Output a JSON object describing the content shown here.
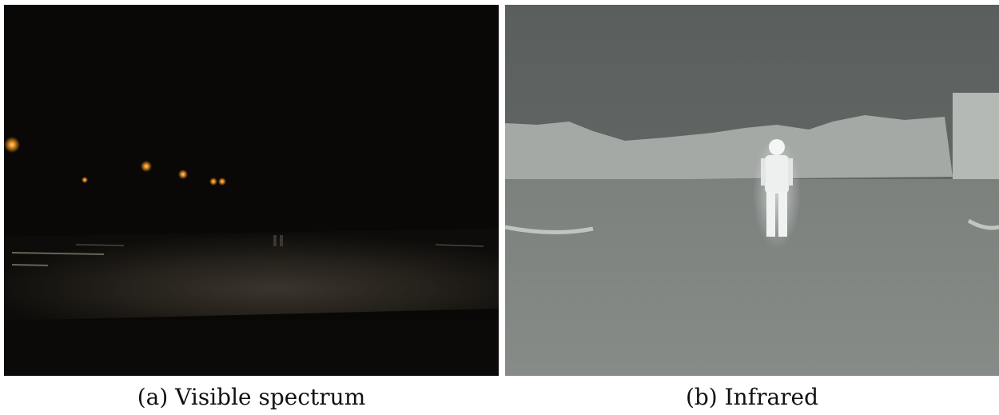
{
  "figure": {
    "panels": [
      {
        "caption": "(a) Visible spectrum"
      },
      {
        "caption": "(b) Infrared"
      }
    ]
  }
}
